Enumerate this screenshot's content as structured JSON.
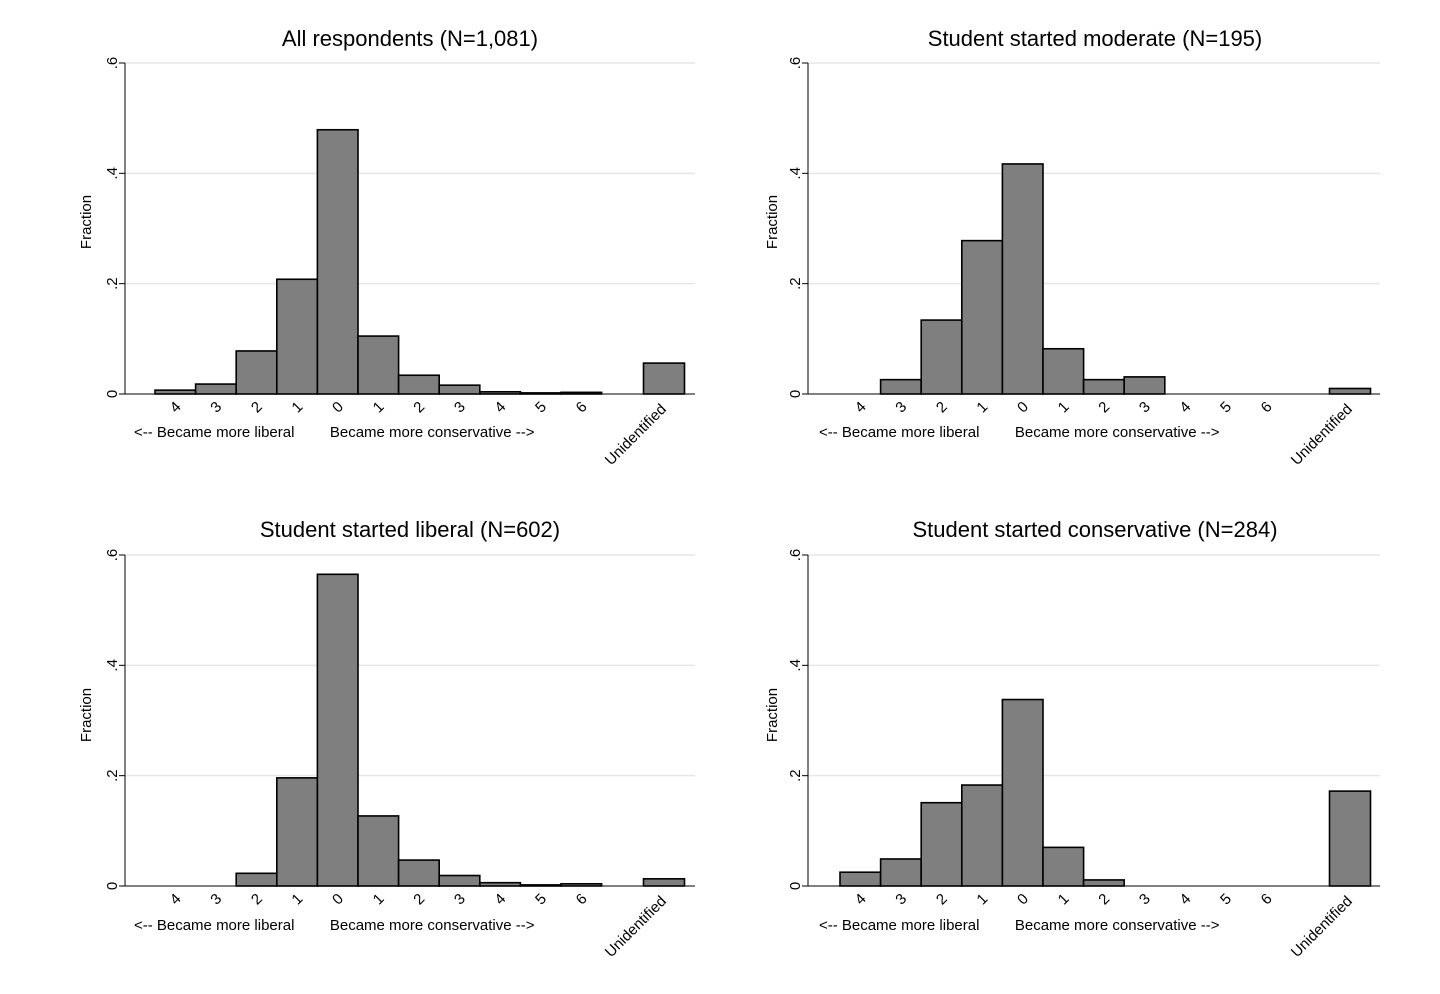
{
  "x_tick_labels": [
    "4",
    "3",
    "2",
    "1",
    "0",
    "1",
    "2",
    "3",
    "4",
    "5",
    "6"
  ],
  "x_extra_label": "Unidentified",
  "chart_data": [
    {
      "type": "bar",
      "title": "All respondents (N=1,081)",
      "ylabel": "Fraction",
      "ylim": [
        0,
        0.6
      ],
      "y_ticks": [
        0,
        0.2,
        0.4,
        0.6
      ],
      "y_tick_labels": [
        "0",
        ".2",
        ".4",
        ".6"
      ],
      "xlabel_left": "<-- Became more liberal",
      "xlabel_right": "Became more conservative -->",
      "categories": [
        "4 (more liberal)",
        "3 (more liberal)",
        "2 (more liberal)",
        "1 (more liberal)",
        "0",
        "1 (more conservative)",
        "2 (more conservative)",
        "3 (more conservative)",
        "4 (more conservative)",
        "5 (more conservative)",
        "6 (more conservative)",
        "Unidentified"
      ],
      "values": [
        0.007,
        0.018,
        0.078,
        0.208,
        0.479,
        0.105,
        0.034,
        0.016,
        0.004,
        0.002,
        0.003,
        0.056
      ]
    },
    {
      "type": "bar",
      "title": "Student started moderate (N=195)",
      "ylabel": "Fraction",
      "ylim": [
        0,
        0.6
      ],
      "y_ticks": [
        0,
        0.2,
        0.4,
        0.6
      ],
      "y_tick_labels": [
        "0",
        ".2",
        ".4",
        ".6"
      ],
      "xlabel_left": "<-- Became more liberal",
      "xlabel_right": "Became more conservative -->",
      "categories": [
        "4 (more liberal)",
        "3 (more liberal)",
        "2 (more liberal)",
        "1 (more liberal)",
        "0",
        "1 (more conservative)",
        "2 (more conservative)",
        "3 (more conservative)",
        "4 (more conservative)",
        "5 (more conservative)",
        "6 (more conservative)",
        "Unidentified"
      ],
      "values": [
        0,
        0.026,
        0.134,
        0.278,
        0.417,
        0.082,
        0.026,
        0.031,
        0,
        0,
        0,
        0.01
      ]
    },
    {
      "type": "bar",
      "title": "Student started liberal (N=602)",
      "ylabel": "Fraction",
      "ylim": [
        0,
        0.6
      ],
      "y_ticks": [
        0,
        0.2,
        0.4,
        0.6
      ],
      "y_tick_labels": [
        "0",
        ".2",
        ".4",
        ".6"
      ],
      "xlabel_left": "<-- Became more liberal",
      "xlabel_right": "Became more conservative -->",
      "categories": [
        "4 (more liberal)",
        "3 (more liberal)",
        "2 (more liberal)",
        "1 (more liberal)",
        "0",
        "1 (more conservative)",
        "2 (more conservative)",
        "3 (more conservative)",
        "4 (more conservative)",
        "5 (more conservative)",
        "6 (more conservative)",
        "Unidentified"
      ],
      "values": [
        0,
        0,
        0.023,
        0.196,
        0.565,
        0.127,
        0.047,
        0.019,
        0.006,
        0.002,
        0.004,
        0.013
      ]
    },
    {
      "type": "bar",
      "title": "Student started conservative (N=284)",
      "ylabel": "Fraction",
      "ylim": [
        0,
        0.6
      ],
      "y_ticks": [
        0,
        0.2,
        0.4,
        0.6
      ],
      "y_tick_labels": [
        "0",
        ".2",
        ".4",
        ".6"
      ],
      "xlabel_left": "<-- Became more liberal",
      "xlabel_right": "Became more conservative -->",
      "categories": [
        "4 (more liberal)",
        "3 (more liberal)",
        "2 (more liberal)",
        "1 (more liberal)",
        "0",
        "1 (more conservative)",
        "2 (more conservative)",
        "3 (more conservative)",
        "4 (more conservative)",
        "5 (more conservative)",
        "6 (more conservative)",
        "Unidentified"
      ],
      "values": [
        0.025,
        0.049,
        0.151,
        0.183,
        0.338,
        0.07,
        0.011,
        0,
        0,
        0,
        0,
        0.172
      ]
    }
  ]
}
